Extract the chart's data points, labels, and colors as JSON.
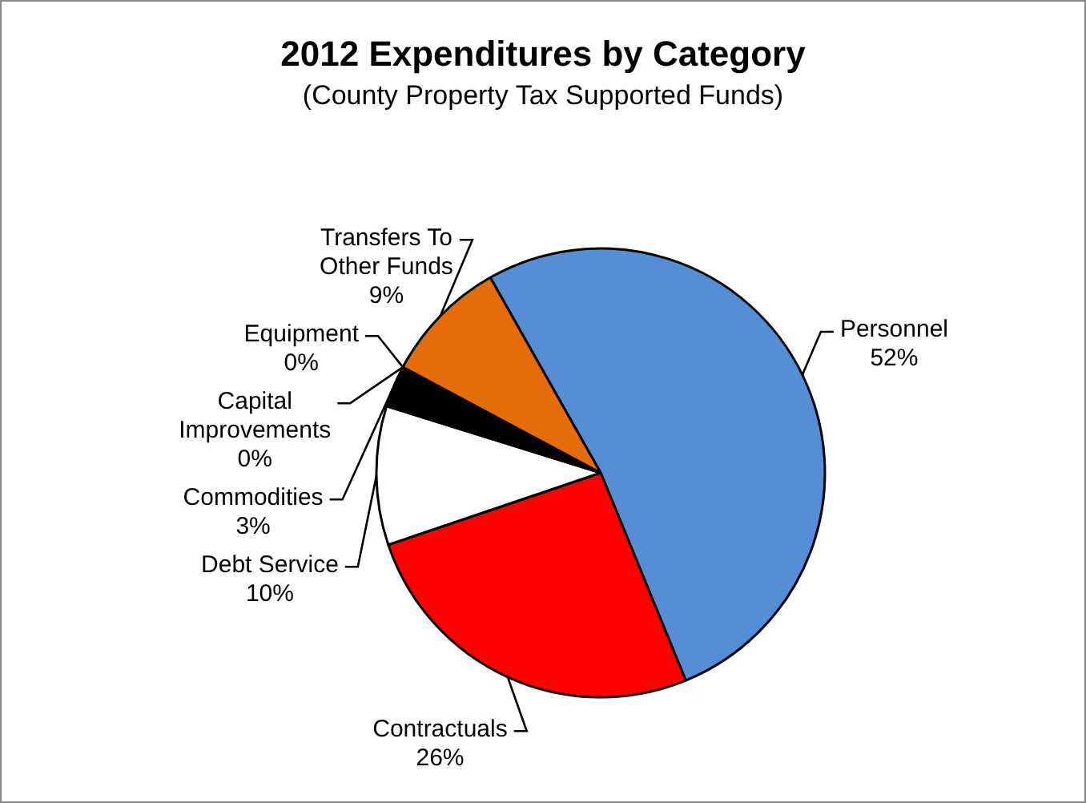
{
  "chart_data": {
    "type": "pie",
    "title": "2012 Expenditures by Category",
    "subtitle": "(County Property Tax Supported Funds)",
    "categories": [
      "Personnel",
      "Contractuals",
      "Debt Service",
      "Commodities",
      "Capital Improvements",
      "Equipment",
      "Transfers To Other Funds"
    ],
    "values": [
      52,
      26,
      10,
      3,
      0,
      0,
      9
    ],
    "value_labels": [
      "52%",
      "26%",
      "10%",
      "3%",
      "0%",
      "0%",
      "9%"
    ],
    "colors": [
      "#558ed5",
      "#ff0000",
      "#ffffff",
      "#000000",
      "#7f7f7f",
      "#a5a5a5",
      "#e46c0a"
    ],
    "legend": false
  }
}
